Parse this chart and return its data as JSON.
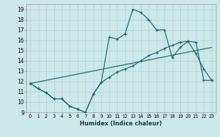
{
  "xlabel": "Humidex (Indice chaleur)",
  "bg_color": "#cce8e8",
  "line_color": "#1e6b6b",
  "xlim": [
    -0.5,
    23.5
  ],
  "ylim": [
    9,
    19.5
  ],
  "xticks": [
    0,
    1,
    2,
    3,
    4,
    5,
    6,
    7,
    8,
    9,
    10,
    11,
    12,
    13,
    14,
    15,
    16,
    17,
    18,
    19,
    20,
    21,
    22,
    23
  ],
  "yticks": [
    9,
    10,
    11,
    12,
    13,
    14,
    15,
    16,
    17,
    18,
    19
  ],
  "line1_x": [
    0,
    1,
    2,
    3,
    4,
    5,
    6,
    7,
    8,
    9,
    10,
    11,
    12,
    13,
    14,
    15,
    16,
    17,
    18,
    19,
    20,
    21,
    22,
    23
  ],
  "line1_y": [
    11.8,
    11.3,
    10.9,
    10.3,
    10.3,
    9.6,
    9.3,
    9.0,
    10.8,
    11.9,
    12.4,
    12.9,
    13.2,
    13.5,
    14.0,
    14.5,
    14.8,
    15.2,
    15.5,
    15.8,
    15.9,
    15.8,
    12.1,
    12.1
  ],
  "line2_x": [
    0,
    1,
    2,
    3,
    4,
    5,
    6,
    7,
    8,
    9,
    10,
    11,
    12,
    13,
    14,
    15,
    16,
    17,
    18,
    19,
    20,
    21,
    22,
    23
  ],
  "line2_y": [
    11.8,
    11.3,
    10.9,
    10.3,
    10.3,
    9.6,
    9.3,
    9.0,
    10.8,
    11.9,
    16.3,
    16.1,
    16.6,
    19.0,
    18.7,
    18.0,
    17.0,
    17.0,
    14.3,
    15.3,
    15.9,
    14.7,
    13.2,
    12.1
  ],
  "line3_x": [
    0,
    23
  ],
  "line3_y": [
    11.8,
    15.3
  ]
}
